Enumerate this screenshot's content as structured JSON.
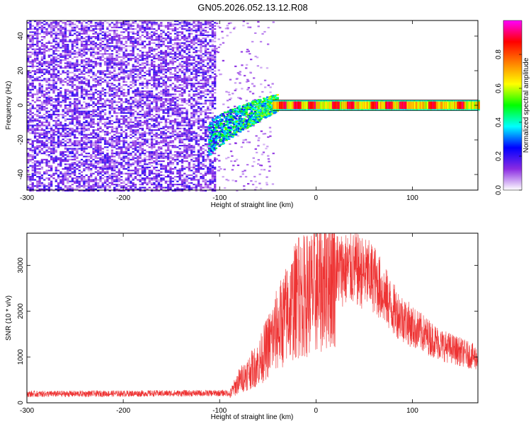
{
  "title": "GN05.2026.052.13.12.R08",
  "chart_data": [
    {
      "type": "heatmap",
      "name": "spectrogram",
      "xlabel": "Height of straight line (km)",
      "ylabel": "Frequency (Hz)",
      "xlim": [
        -300,
        168
      ],
      "ylim": [
        -49,
        49
      ],
      "xticks": [
        -300,
        -200,
        -100,
        0,
        100
      ],
      "yticks": [
        -40,
        -20,
        0,
        20,
        40
      ],
      "colorbar": {
        "label": "Normalized spectral amplitude",
        "range": [
          0,
          1
        ],
        "ticks": [
          "0.0",
          "0.2",
          "0.4",
          "0.6",
          "0.8"
        ],
        "colors": [
          "#ffffff",
          "#8a2be2",
          "#0000ff",
          "#00ffff",
          "#00ff00",
          "#ffff00",
          "#ff8000",
          "#ff0000",
          "#ff00ff"
        ]
      },
      "segments": [
        {
          "x": [
            -300,
            -105
          ],
          "description_level": 0.15,
          "spread_hz": 49
        },
        {
          "x": [
            -105,
            -40
          ],
          "center_hz": [
            -20,
            2
          ],
          "level": 0.35
        },
        {
          "x": [
            -40,
            168
          ],
          "center_hz": 0,
          "level": 0.85
        }
      ]
    },
    {
      "type": "line",
      "name": "snr",
      "xlabel": "Height of straight line (km)",
      "ylabel": "SNR (10 * v/v)",
      "xlim": [
        -300,
        168
      ],
      "ylim": [
        0,
        3700
      ],
      "xticks": [
        -300,
        -200,
        -100,
        0,
        100
      ],
      "yticks": [
        0,
        1000,
        2000,
        3000
      ],
      "color": "#ee3333",
      "envelope": [
        {
          "x": -300,
          "y": 150
        },
        {
          "x": -90,
          "y": 170
        },
        {
          "x": -80,
          "y": 500
        },
        {
          "x": -60,
          "y": 900
        },
        {
          "x": -40,
          "y": 1700
        },
        {
          "x": -20,
          "y": 2400
        },
        {
          "x": 0,
          "y": 2600
        },
        {
          "x": 20,
          "y": 3000
        },
        {
          "x": 40,
          "y": 3000
        },
        {
          "x": 60,
          "y": 2800
        },
        {
          "x": 80,
          "y": 2100
        },
        {
          "x": 100,
          "y": 1700
        },
        {
          "x": 130,
          "y": 1300
        },
        {
          "x": 168,
          "y": 1000
        }
      ]
    }
  ]
}
